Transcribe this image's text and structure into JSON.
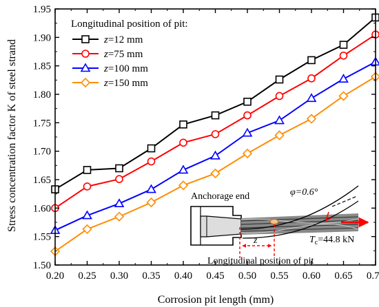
{
  "chart_data": {
    "type": "line",
    "xlabel": "Corrosion pit length (mm)",
    "ylabel": "Stress concentration factor K of steel strand",
    "xlim": [
      0.2,
      0.7
    ],
    "ylim": [
      1.5,
      1.95
    ],
    "x": [
      0.2,
      0.25,
      0.3,
      0.35,
      0.4,
      0.45,
      0.5,
      0.55,
      0.6,
      0.65,
      0.7
    ],
    "xticks": [
      "0.20",
      "0.25",
      "0.30",
      "0.35",
      "0.40",
      "0.45",
      "0.50",
      "0.55",
      "0.60",
      "0.65",
      "0.70"
    ],
    "yticks": [
      "1.50",
      "1.55",
      "1.60",
      "1.65",
      "1.70",
      "1.75",
      "1.80",
      "1.85",
      "1.90",
      "1.95"
    ],
    "grid": false,
    "legend": {
      "title": "Longitudinal position of pit:",
      "placement": "top-left"
    },
    "series": [
      {
        "name": "z=12 mm",
        "color": "#000000",
        "marker": "square",
        "values": [
          1.633,
          1.667,
          1.67,
          1.705,
          1.747,
          1.763,
          1.787,
          1.826,
          1.86,
          1.887,
          1.935
        ]
      },
      {
        "name": "z=75 mm",
        "color": "#ff0000",
        "marker": "circle",
        "values": [
          1.6,
          1.638,
          1.651,
          1.682,
          1.715,
          1.73,
          1.763,
          1.797,
          1.828,
          1.868,
          1.905
        ]
      },
      {
        "name": "z=100 mm",
        "color": "#0000ff",
        "marker": "triangle",
        "values": [
          1.561,
          1.587,
          1.608,
          1.633,
          1.667,
          1.692,
          1.732,
          1.754,
          1.793,
          1.827,
          1.857
        ]
      },
      {
        "name": "z=150 mm",
        "color": "#ff8c00",
        "marker": "diamond",
        "values": [
          1.524,
          1.563,
          1.585,
          1.61,
          1.64,
          1.661,
          1.696,
          1.728,
          1.757,
          1.797,
          1.831
        ]
      }
    ],
    "inset": {
      "anchorage_label": "Anchorage end",
      "angle_label": "φ=0.6°",
      "z_label": "z",
      "force_label": "T",
      "force_sub": "c",
      "force_value": "=44.8 kN",
      "position_label": "Longitudinal position of pit"
    }
  }
}
